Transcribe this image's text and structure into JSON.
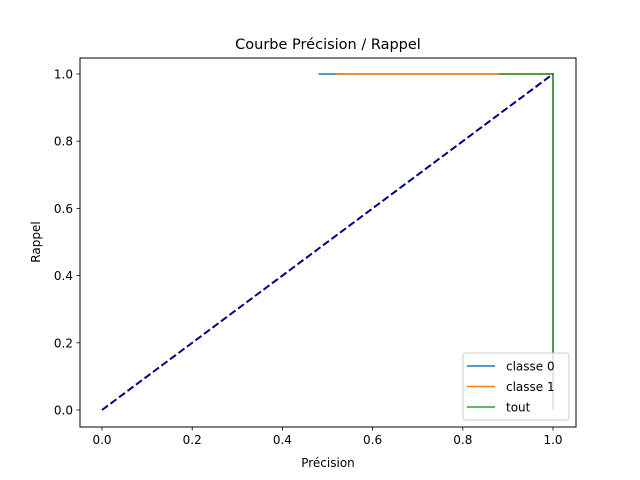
{
  "chart_data": {
    "type": "line",
    "title": "Courbe Précision / Rappel",
    "xlabel": "Précision",
    "ylabel": "Rappel",
    "xlim": [
      -0.05,
      1.05
    ],
    "ylim": [
      -0.05,
      1.05
    ],
    "xticks": [
      "0.0",
      "0.2",
      "0.4",
      "0.6",
      "0.8",
      "1.0"
    ],
    "yticks": [
      "0.0",
      "0.2",
      "0.4",
      "0.6",
      "0.8",
      "1.0"
    ],
    "grid": false,
    "legend_position": "lower right",
    "series": [
      {
        "name": "classe 0",
        "color": "#1f77b4",
        "x": [
          0.48,
          1.0,
          1.0
        ],
        "y": [
          1.0,
          1.0,
          0.0
        ]
      },
      {
        "name": "classe 1",
        "color": "#ff7f0e",
        "x": [
          0.52,
          1.0,
          1.0
        ],
        "y": [
          1.0,
          1.0,
          0.0
        ]
      },
      {
        "name": "tout",
        "color": "#2ca02c",
        "x": [
          0.88,
          1.0,
          1.0
        ],
        "y": [
          1.0,
          1.0,
          0.0
        ]
      }
    ],
    "reference_line": {
      "color": "#000080",
      "style": "dashed",
      "x": [
        0.0,
        1.0
      ],
      "y": [
        0.0,
        1.0
      ]
    }
  }
}
